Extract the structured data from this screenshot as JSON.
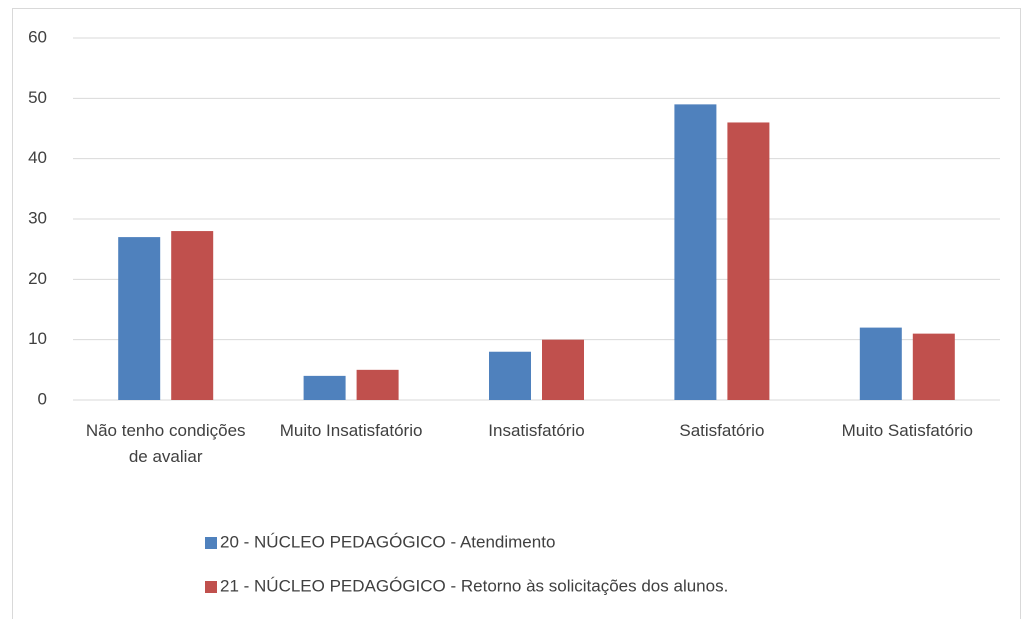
{
  "chart_data": {
    "type": "bar",
    "categories": [
      "Não tenho condições de avaliar",
      "Muito Insatisfatório",
      "Insatisfatório",
      "Satisfatório",
      "Muito Satisfatório"
    ],
    "series": [
      {
        "name": "20 - NÚCLEO PEDAGÓGICO - Atendimento",
        "color": "#4f81bd",
        "values": [
          27,
          4,
          8,
          49,
          12
        ]
      },
      {
        "name": "21 - NÚCLEO PEDAGÓGICO - Retorno às solicitações dos alunos.",
        "color": "#c0504d",
        "values": [
          28,
          5,
          10,
          46,
          11
        ]
      }
    ],
    "ylim": [
      0,
      60
    ],
    "yticks": [
      0,
      10,
      20,
      30,
      40,
      50,
      60
    ],
    "grid": true,
    "legend": "bottom"
  }
}
